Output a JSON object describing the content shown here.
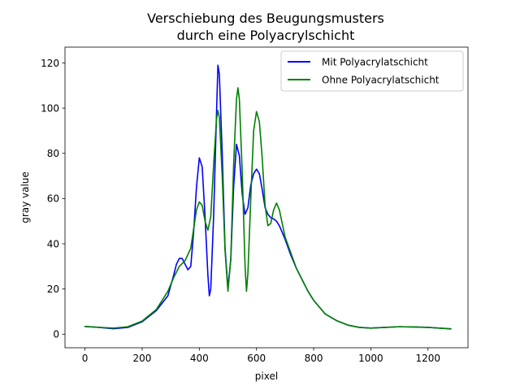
{
  "chart_data": {
    "type": "line",
    "title_line1": "Verschiebung des Beugungsmusters",
    "title_line2": "durch eine Polyacrylschicht",
    "xlabel": "pixel",
    "ylabel": "gray value",
    "xlim": [
      -70,
      1340
    ],
    "ylim": [
      -6,
      127
    ],
    "xticks": [
      0,
      200,
      400,
      600,
      800,
      1000,
      1200
    ],
    "yticks": [
      0,
      20,
      40,
      60,
      80,
      100,
      120
    ],
    "legend_position": "top-right",
    "grid": false,
    "series": [
      {
        "name": "Mit Polyacrylatschicht",
        "color": "#0000ff",
        "points": [
          [
            0,
            3.4
          ],
          [
            50,
            3.0
          ],
          [
            100,
            2.4
          ],
          [
            150,
            3.0
          ],
          [
            200,
            5.5
          ],
          [
            250,
            10.5
          ],
          [
            290,
            17
          ],
          [
            310,
            26
          ],
          [
            320,
            31
          ],
          [
            330,
            33.5
          ],
          [
            340,
            33.5
          ],
          [
            350,
            31
          ],
          [
            360,
            28.5
          ],
          [
            370,
            30
          ],
          [
            380,
            45
          ],
          [
            390,
            65
          ],
          [
            400,
            78
          ],
          [
            410,
            74
          ],
          [
            420,
            52
          ],
          [
            430,
            26
          ],
          [
            435,
            17
          ],
          [
            440,
            20
          ],
          [
            450,
            52
          ],
          [
            460,
            97
          ],
          [
            465,
            119
          ],
          [
            470,
            115
          ],
          [
            480,
            80
          ],
          [
            490,
            38
          ],
          [
            500,
            20.5
          ],
          [
            510,
            33
          ],
          [
            520,
            65
          ],
          [
            530,
            84
          ],
          [
            540,
            79
          ],
          [
            550,
            62
          ],
          [
            560,
            53
          ],
          [
            570,
            56
          ],
          [
            580,
            66
          ],
          [
            590,
            71
          ],
          [
            600,
            73
          ],
          [
            610,
            71
          ],
          [
            620,
            64
          ],
          [
            630,
            56
          ],
          [
            640,
            53
          ],
          [
            650,
            51.5
          ],
          [
            660,
            51
          ],
          [
            670,
            50
          ],
          [
            680,
            48
          ],
          [
            700,
            42
          ],
          [
            720,
            35
          ],
          [
            740,
            29
          ],
          [
            760,
            24
          ],
          [
            780,
            19
          ],
          [
            800,
            15
          ],
          [
            840,
            9
          ],
          [
            880,
            6
          ],
          [
            920,
            4
          ],
          [
            960,
            3
          ],
          [
            1000,
            2.7
          ],
          [
            1050,
            3.0
          ],
          [
            1100,
            3.3
          ],
          [
            1150,
            3.2
          ],
          [
            1200,
            3.0
          ],
          [
            1250,
            2.6
          ],
          [
            1280,
            2.4
          ]
        ]
      },
      {
        "name": "Ohne Polyacrylatschicht",
        "color": "#008000",
        "points": [
          [
            0,
            3.4
          ],
          [
            50,
            3.0
          ],
          [
            100,
            2.7
          ],
          [
            150,
            3.3
          ],
          [
            200,
            5.8
          ],
          [
            250,
            11
          ],
          [
            290,
            19
          ],
          [
            310,
            25
          ],
          [
            330,
            30
          ],
          [
            350,
            32.5
          ],
          [
            370,
            38
          ],
          [
            390,
            55
          ],
          [
            400,
            58.5
          ],
          [
            410,
            57
          ],
          [
            420,
            50
          ],
          [
            430,
            46
          ],
          [
            440,
            52
          ],
          [
            450,
            75
          ],
          [
            460,
            95
          ],
          [
            465,
            99
          ],
          [
            470,
            96
          ],
          [
            480,
            70
          ],
          [
            490,
            37
          ],
          [
            500,
            19
          ],
          [
            510,
            33
          ],
          [
            520,
            75
          ],
          [
            530,
            104
          ],
          [
            535,
            109
          ],
          [
            540,
            104
          ],
          [
            550,
            72
          ],
          [
            560,
            30
          ],
          [
            565,
            19
          ],
          [
            570,
            27
          ],
          [
            580,
            60
          ],
          [
            590,
            90
          ],
          [
            600,
            98.5
          ],
          [
            610,
            94
          ],
          [
            620,
            78
          ],
          [
            630,
            57
          ],
          [
            640,
            48
          ],
          [
            650,
            49
          ],
          [
            660,
            55
          ],
          [
            670,
            58
          ],
          [
            680,
            55
          ],
          [
            690,
            49
          ],
          [
            700,
            43
          ],
          [
            720,
            36
          ],
          [
            740,
            29
          ],
          [
            760,
            24
          ],
          [
            780,
            19
          ],
          [
            800,
            15
          ],
          [
            840,
            9
          ],
          [
            880,
            6
          ],
          [
            920,
            4
          ],
          [
            960,
            3
          ],
          [
            1000,
            2.7
          ],
          [
            1050,
            3.0
          ],
          [
            1100,
            3.3
          ],
          [
            1150,
            3.2
          ],
          [
            1200,
            3.0
          ],
          [
            1250,
            2.6
          ],
          [
            1280,
            2.3
          ]
        ]
      }
    ]
  }
}
